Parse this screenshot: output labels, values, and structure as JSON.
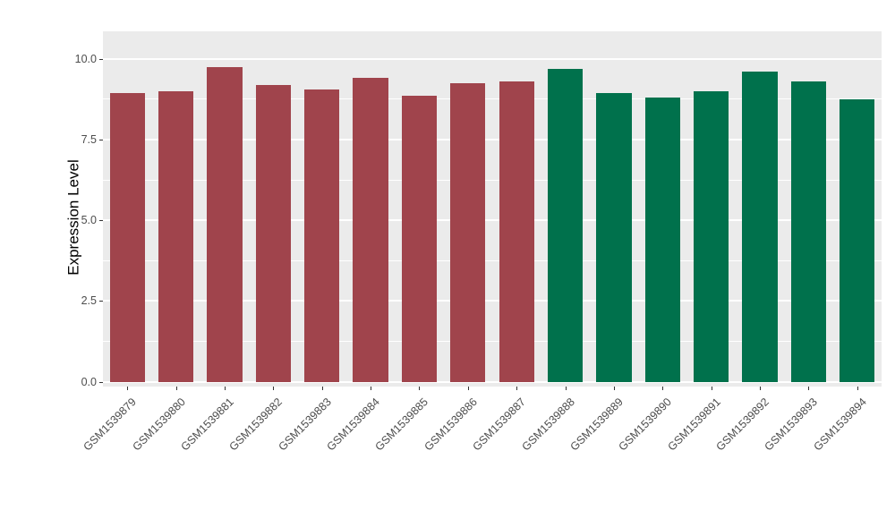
{
  "chart_data": {
    "type": "bar",
    "title": "",
    "xlabel": "",
    "ylabel": "Expression Level",
    "ylim": [
      -0.15,
      10.85
    ],
    "grid": true,
    "legend": "none",
    "y_major_ticks": [
      0.0,
      2.5,
      5.0,
      7.5,
      10.0
    ],
    "y_tick_labels": [
      "0.0",
      "2.5",
      "5.0",
      "7.5",
      "10.0"
    ],
    "y_minor_ticks": [
      1.25,
      3.75,
      6.25,
      8.75
    ],
    "categories": [
      "GSM1539879",
      "GSM1539880",
      "GSM1539881",
      "GSM1539882",
      "GSM1539883",
      "GSM1539884",
      "GSM1539885",
      "GSM1539886",
      "GSM1539887",
      "GSM1539888",
      "GSM1539889",
      "GSM1539890",
      "GSM1539891",
      "GSM1539892",
      "GSM1539893",
      "GSM1539894"
    ],
    "values": [
      8.95,
      9.0,
      9.75,
      9.2,
      9.05,
      9.4,
      8.85,
      9.25,
      9.3,
      9.7,
      8.95,
      8.8,
      9.0,
      9.6,
      9.3,
      8.75
    ],
    "bar_colors": [
      "#A0444C",
      "#A0444C",
      "#A0444C",
      "#A0444C",
      "#A0444C",
      "#A0444C",
      "#A0444C",
      "#A0444C",
      "#A0444C",
      "#00714C",
      "#00714C",
      "#00714C",
      "#00714C",
      "#00714C",
      "#00714C",
      "#00714C"
    ],
    "colors": {
      "group1": "#A0444C",
      "group2": "#00714C",
      "panel_background": "#EBEBEB",
      "gridline": "#FFFFFF",
      "tick_text": "#4D4D4D"
    }
  }
}
